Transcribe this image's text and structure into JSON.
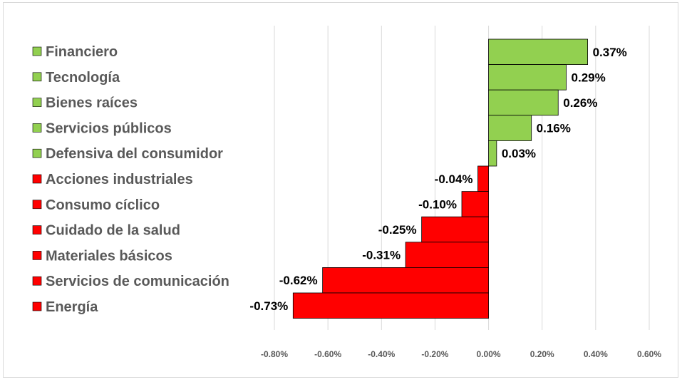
{
  "chart_data": {
    "type": "bar",
    "orientation": "horizontal",
    "categories": [
      "Financiero",
      "Tecnología",
      "Bienes raíces",
      "Servicios públicos",
      "Defensiva del consumidor",
      "Acciones industriales",
      "Consumo cíclico",
      "Cuidado de la salud",
      "Materiales básicos",
      "Servicios de comunicación",
      "Energía"
    ],
    "values": [
      0.37,
      0.29,
      0.26,
      0.16,
      0.03,
      -0.04,
      -0.1,
      -0.25,
      -0.31,
      -0.62,
      -0.73
    ],
    "data_labels": [
      "0.37%",
      "0.29%",
      "0.26%",
      "0.16%",
      "0.03%",
      "-0.04%",
      "-0.10%",
      "-0.25%",
      "-0.31%",
      "-0.62%",
      "-0.73%"
    ],
    "x_ticks": [
      -0.8,
      -0.6,
      -0.4,
      -0.2,
      0.0,
      0.2,
      0.4,
      0.6
    ],
    "x_tick_labels": [
      "-0.80%",
      "-0.60%",
      "-0.40%",
      "-0.20%",
      "0.00%",
      "0.20%",
      "0.40%",
      "0.60%"
    ],
    "xlim": [
      -0.8,
      0.6
    ],
    "grid": "vertical",
    "legend_position": "left",
    "colors": {
      "positive": "#92d050",
      "negative": "#ff0000",
      "bar_border": "#000000",
      "grid": "#d9d9d9",
      "category_text": "#595959"
    }
  }
}
